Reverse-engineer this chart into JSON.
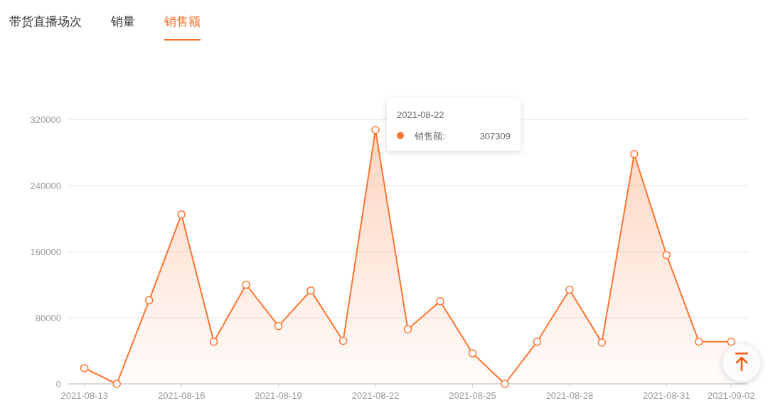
{
  "chart_data": {
    "type": "area",
    "title": "销售额",
    "annotations": [
      "带货直播场次",
      "销量",
      {
        "text": "2021-08-22",
        "x": "2021-08-22",
        "y": 307309
      },
      "307309"
    ],
    "categories": [
      "2021-08-13",
      null,
      null,
      "2021-08-16",
      null,
      null,
      "2021-08-19",
      null,
      null,
      "2021-08-22",
      null,
      null,
      "2021-08-25",
      null,
      null,
      "2021-08-28",
      null,
      null,
      "2021-08-31",
      null,
      "2021-09-02"
    ],
    "series": [
      {
        "name": "销售额:",
        "color": "#ff7430",
        "values": [
          19000,
          0,
          101000,
          205000,
          51000,
          120000,
          70000,
          113000,
          52000,
          307309,
          66000,
          100000,
          37000,
          0,
          51000,
          114000,
          50000,
          278000,
          156000,
          51000,
          51000
        ]
      }
    ],
    "ylim": [
      0,
      320000
    ],
    "yticks": [
      0,
      80000,
      160000,
      240000,
      320000
    ],
    "grid": "y",
    "legend": "top",
    "marker": "circle",
    "line_style": "solid"
  }
}
